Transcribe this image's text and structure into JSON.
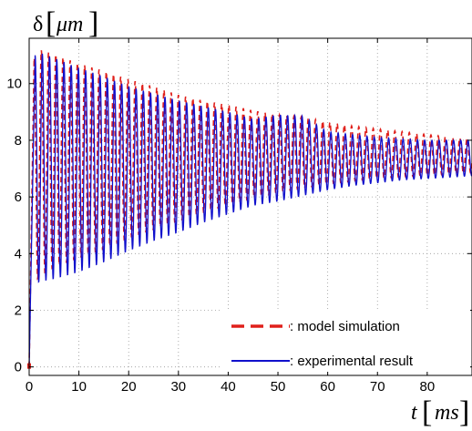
{
  "chart_data": {
    "type": "line",
    "title": "",
    "ylabel": {
      "symbol": "δ",
      "unit": "μm"
    },
    "xlabel": {
      "symbol": "t",
      "unit": "ms"
    },
    "xlim": [
      0,
      89
    ],
    "ylim": [
      -0.3,
      11.6
    ],
    "xticks": [
      0,
      10,
      20,
      30,
      40,
      50,
      60,
      70,
      80
    ],
    "yticks": [
      0,
      2,
      4,
      6,
      8,
      10
    ],
    "grid": true,
    "legend_position": "bottom-right",
    "oscillation_period_ms": 1.45,
    "series": [
      {
        "name": ": model simulation",
        "color": "#e0201b",
        "dash": "dashed",
        "rise_end": [
          1.0,
          10.9
        ],
        "envelope_t": [
          1.0,
          2,
          5,
          10,
          15,
          20,
          25,
          30,
          35,
          40,
          45,
          50,
          55,
          60,
          65,
          70,
          75,
          80,
          85,
          89
        ],
        "upper": [
          10.9,
          11.2,
          11.05,
          10.7,
          10.45,
          10.15,
          9.9,
          9.6,
          9.4,
          9.25,
          9.05,
          8.9,
          8.8,
          8.65,
          8.5,
          8.4,
          8.3,
          8.2,
          8.1,
          8.05
        ],
        "lower": [
          2.9,
          3.2,
          3.5,
          3.85,
          4.15,
          4.55,
          4.85,
          5.15,
          5.45,
          5.7,
          5.95,
          6.15,
          6.3,
          6.45,
          6.55,
          6.65,
          6.7,
          6.75,
          6.8,
          6.85
        ]
      },
      {
        "name": ": experimental result",
        "color": "#1010cc",
        "dash": "solid",
        "rise_end": [
          1.2,
          11.0
        ],
        "envelope_t": [
          1.2,
          2,
          5,
          10,
          15,
          20,
          25,
          30,
          35,
          40,
          45,
          50,
          55,
          60,
          65,
          70,
          75,
          80,
          85,
          89
        ],
        "upper": [
          11.0,
          11.1,
          10.9,
          10.55,
          10.25,
          9.9,
          9.65,
          9.4,
          9.2,
          9.0,
          8.75,
          8.9,
          8.85,
          8.3,
          8.2,
          8.1,
          8.05,
          8.0,
          8.0,
          8.0
        ],
        "lower": [
          2.85,
          3.0,
          3.1,
          3.35,
          3.7,
          4.1,
          4.45,
          4.75,
          5.1,
          5.4,
          5.7,
          5.85,
          6.05,
          6.25,
          6.4,
          6.5,
          6.6,
          6.65,
          6.7,
          6.75
        ]
      }
    ]
  }
}
